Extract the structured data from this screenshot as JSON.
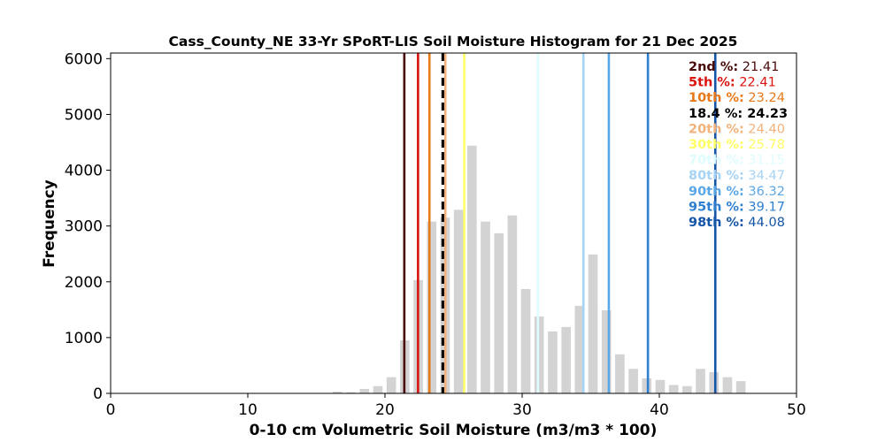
{
  "chart_data": {
    "type": "bar",
    "title": "Cass_County_NE 33-Yr SPoRT-LIS Soil Moisture Histogram for 21 Dec 2025",
    "xlabel": "0-10 cm Volumetric Soil Moisture (m3/m3 * 100)",
    "ylabel": "Frequency",
    "xlim": [
      0,
      50
    ],
    "ylim": [
      0,
      6100
    ],
    "xticks": [
      "0",
      "10",
      "20",
      "30",
      "40",
      "50"
    ],
    "yticks": [
      "0",
      "1000",
      "2000",
      "3000",
      "4000",
      "5000",
      "6000"
    ],
    "xtick_values": [
      0,
      10,
      20,
      30,
      40,
      50
    ],
    "ytick_values": [
      0,
      1000,
      2000,
      3000,
      4000,
      5000,
      6000
    ],
    "grid": false,
    "bar_color": "#d3d3d3",
    "bin_width": 0.98,
    "bar_width_fraction": 0.7,
    "bin_left_edges": [
      16.2,
      17.18,
      18.16,
      19.14,
      20.12,
      21.1,
      22.08,
      23.06,
      24.04,
      25.02,
      26.0,
      26.98,
      27.96,
      28.94,
      29.92,
      30.9,
      31.88,
      32.86,
      33.84,
      34.82,
      35.8,
      36.78,
      37.76,
      38.74,
      39.72,
      40.7,
      41.68,
      42.66,
      43.64,
      44.62,
      45.6,
      46.58
    ],
    "values": [
      30,
      20,
      80,
      130,
      290,
      950,
      2030,
      3080,
      3150,
      3290,
      4440,
      3080,
      2870,
      3190,
      1870,
      1380,
      1110,
      1190,
      1570,
      2490,
      1490,
      700,
      440,
      270,
      240,
      150,
      130,
      440,
      380,
      290,
      220,
      0
    ],
    "percentile_lines": [
      {
        "label_key": "2nd %:",
        "label_value": " 21.41",
        "x": 21.41,
        "color": "#4a0a0a",
        "style": "solid"
      },
      {
        "label_key": "5th %:",
        "label_value": " 22.41",
        "x": 22.41,
        "color": "#d9140f",
        "style": "solid"
      },
      {
        "label_key": "10th %:",
        "label_value": " 23.24",
        "x": 23.24,
        "color": "#e8791a",
        "style": "solid"
      },
      {
        "label_key": "18.4 %:",
        "label_value": " 24.23",
        "x": 24.23,
        "color": "#000000",
        "style": "dashed"
      },
      {
        "label_key": "20th %:",
        "label_value": " 24.40",
        "x": 24.4,
        "color": "#f2b27a",
        "style": "solid"
      },
      {
        "label_key": "30th %:",
        "label_value": " 25.78",
        "x": 25.78,
        "color": "#ffff66",
        "style": "solid"
      },
      {
        "label_key": "70th %:",
        "label_value": " 31.15",
        "x": 31.15,
        "color": "#dffcff",
        "style": "solid"
      },
      {
        "label_key": "80th %:",
        "label_value": " 34.47",
        "x": 34.47,
        "color": "#a7d3f5",
        "style": "solid"
      },
      {
        "label_key": "90th %:",
        "label_value": " 36.32",
        "x": 36.32,
        "color": "#5ba7e6",
        "style": "solid"
      },
      {
        "label_key": "95th %:",
        "label_value": " 39.17",
        "x": 39.17,
        "color": "#2f7fd0",
        "style": "solid"
      },
      {
        "label_key": "98th %:",
        "label_value": " 44.08",
        "x": 44.08,
        "color": "#1555a8",
        "style": "solid"
      }
    ],
    "legend_placement": "top-right"
  }
}
